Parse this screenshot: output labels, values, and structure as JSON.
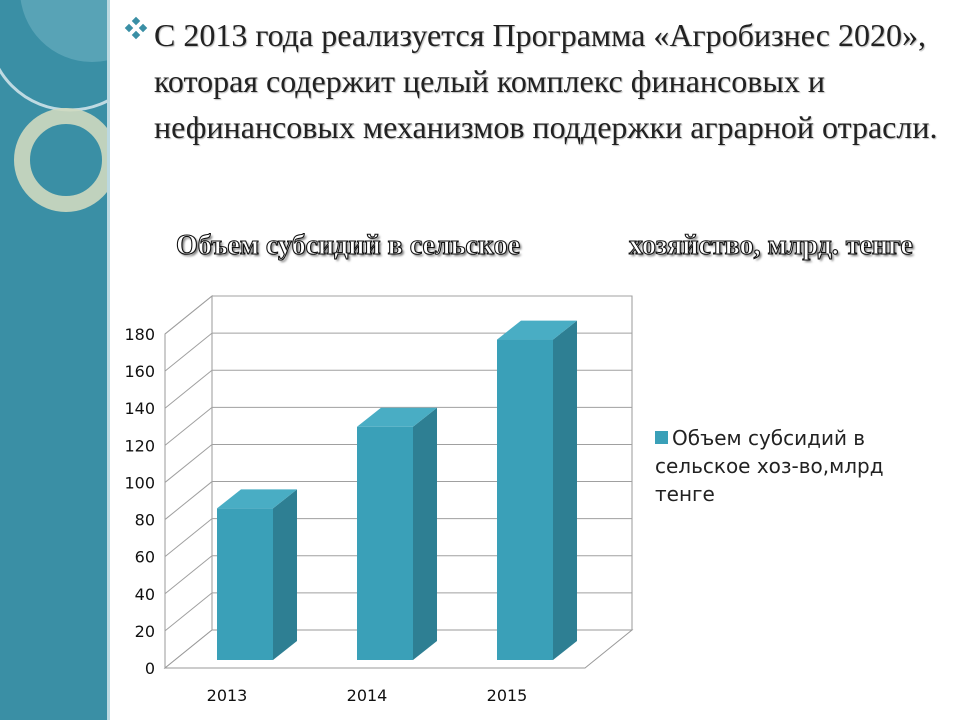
{
  "slide": {
    "bullet_icon": "diamond-bullet-icon",
    "body_text": "С 2013 года реализуется Программа «Агробизнес 2020», которая содержит целый комплекс финансовых и нефинансовых механизмов поддержки аграрной отрасли.",
    "title_part_1": "Объем субсидий в сельское",
    "title_part_2": "хозяйство, млрд. тенге"
  },
  "colors": {
    "sidebar": "#3a8fa5",
    "bar_front": "#3aa0b8",
    "bar_side": "#2e7f93",
    "bar_top": "#49adc4"
  },
  "chart_data": {
    "type": "bar",
    "title": "Объем субсидий в сельское хозяйство, млрд. тенге",
    "categories": [
      "2013",
      "2014",
      "2015"
    ],
    "series": [
      {
        "name": "Объем субсидий в сельское хоз-во,млрд тенге",
        "values": [
          86,
          130,
          177
        ]
      }
    ],
    "yticks": [
      "0",
      "20",
      "40",
      "60",
      "80",
      "100",
      "120",
      "140",
      "160",
      "180"
    ],
    "ylim": [
      0,
      180
    ],
    "grid": true,
    "style": "3d",
    "legend_position": "right"
  }
}
